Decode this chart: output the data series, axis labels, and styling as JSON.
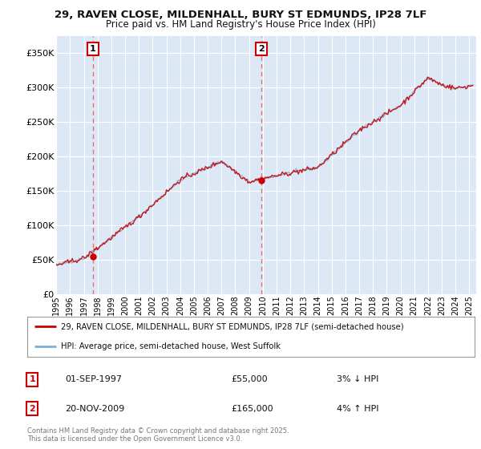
{
  "title_line1": "29, RAVEN CLOSE, MILDENHALL, BURY ST EDMUNDS, IP28 7LF",
  "title_line2": "Price paid vs. HM Land Registry's House Price Index (HPI)",
  "ytick_values": [
    0,
    50000,
    100000,
    150000,
    200000,
    250000,
    300000,
    350000
  ],
  "ylim": [
    0,
    375000
  ],
  "xlim_start": 1995.0,
  "xlim_end": 2025.5,
  "annotation1": {
    "label": "1",
    "date": "01-SEP-1997",
    "price": 55000,
    "pct": "3% ↓ HPI",
    "x_year": 1997.67
  },
  "annotation2": {
    "label": "2",
    "date": "20-NOV-2009",
    "price": 165000,
    "pct": "4% ↑ HPI",
    "x_year": 2009.89
  },
  "legend_line1": "29, RAVEN CLOSE, MILDENHALL, BURY ST EDMUNDS, IP28 7LF (semi-detached house)",
  "legend_line2": "HPI: Average price, semi-detached house, West Suffolk",
  "footer_line1": "Contains HM Land Registry data © Crown copyright and database right 2025.",
  "footer_line2": "This data is licensed under the Open Government Licence v3.0.",
  "price_line_color": "#cc0000",
  "hpi_line_color": "#7ab0d4",
  "background_color": "#dce8f5",
  "grid_color": "#ffffff",
  "dashed_line_color": "#e87070"
}
